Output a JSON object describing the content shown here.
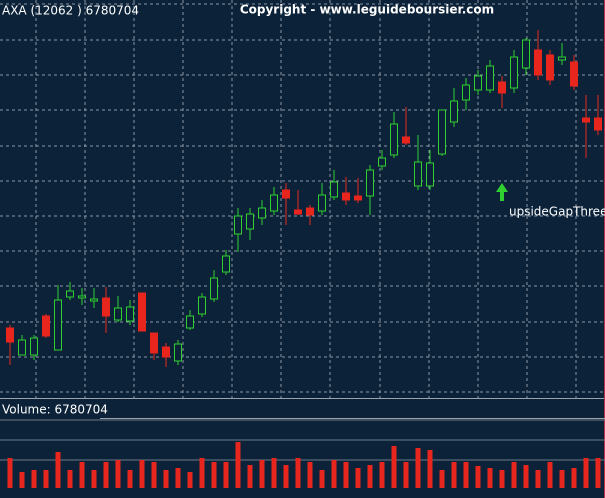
{
  "chart_data": {
    "type": "candlestick",
    "title": "AXA (12062 ) 6780704",
    "copyright": "Copyright - www.leguideboursier.com",
    "open": [
      72,
      45,
      45,
      84,
      50,
      103,
      102,
      99,
      102,
      80,
      79,
      107,
      67,
      53,
      39,
      72,
      86,
      101,
      128,
      166,
      171,
      182,
      189,
      210,
      190,
      192,
      189,
      203,
      207,
      204,
      204,
      234,
      245,
      263,
      214,
      214,
      246,
      278,
      300,
      310,
      310,
      318,
      312,
      332,
      350,
      345,
      340,
      338,
      282,
      282
    ],
    "high": [
      75,
      65,
      65,
      86,
      115,
      118,
      112,
      112,
      113,
      104,
      100,
      107,
      67,
      57,
      60,
      90,
      107,
      130,
      150,
      192,
      192,
      200,
      213,
      217,
      210,
      195,
      217,
      230,
      223,
      222,
      235,
      250,
      288,
      293,
      265,
      250,
      290,
      312,
      322,
      330,
      340,
      324,
      350,
      362,
      370,
      350,
      357,
      345,
      305,
      305
    ],
    "low": [
      35,
      45,
      40,
      62,
      50,
      100,
      95,
      92,
      67,
      78,
      75,
      69,
      40,
      33,
      35,
      70,
      83,
      98,
      125,
      148,
      160,
      175,
      185,
      175,
      185,
      175,
      185,
      200,
      195,
      197,
      185,
      230,
      242,
      255,
      210,
      210,
      244,
      273,
      290,
      305,
      307,
      292,
      307,
      325,
      320,
      315,
      335,
      310,
      242,
      265
    ],
    "close": [
      58,
      60,
      62,
      64,
      100,
      109,
      104,
      101,
      84,
      92,
      93,
      69,
      47,
      43,
      56,
      84,
      103,
      122,
      144,
      184,
      186,
      192,
      205,
      202,
      186,
      185,
      205,
      218,
      200,
      200,
      230,
      242,
      276,
      257,
      238,
      237,
      290,
      299,
      315,
      324,
      334,
      307,
      343,
      360,
      325,
      320,
      343,
      314,
      278,
      270
    ],
    "color_up": "#2fd02f",
    "color_down": "#e8261e",
    "ylim": [
      0,
      400
    ],
    "yticks": [
      8,
      43,
      78,
      114,
      149,
      184,
      219,
      254,
      290,
      325,
      360,
      396
    ],
    "grid": true,
    "annotation": {
      "text": "upsideGapThreeM",
      "index": 41
    },
    "volume_label": "Volume: 6780704",
    "volume": [
      30,
      16,
      18,
      18,
      36,
      18,
      26,
      18,
      26,
      28,
      18,
      28,
      26,
      18,
      20,
      16,
      30,
      26,
      26,
      46,
      23,
      28,
      30,
      23,
      30,
      26,
      18,
      28,
      26,
      20,
      23,
      26,
      42,
      26,
      40,
      38,
      18,
      26,
      26,
      22,
      20,
      18,
      26,
      23,
      18,
      26,
      18,
      20,
      30,
      30
    ],
    "volume_color": "#e8261e",
    "volume_lim": [
      0,
      88
    ],
    "volume_ticks": [
      28,
      48,
      68
    ]
  }
}
